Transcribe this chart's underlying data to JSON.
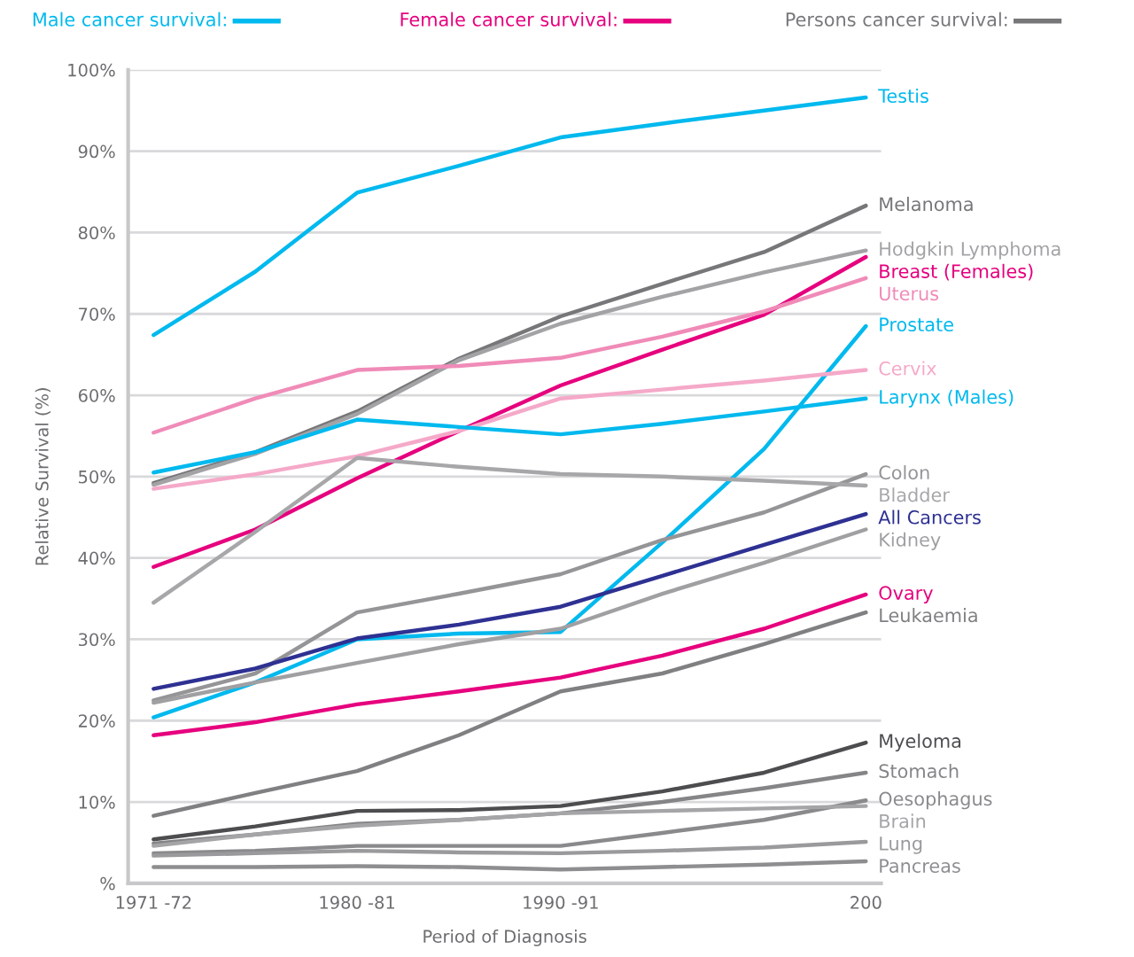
{
  "chart_data": {
    "type": "line",
    "xlabel": "Period of Diagnosis",
    "ylabel": "Relative Survival (%)",
    "categories": [
      "1971 -72",
      null,
      "1980 -81",
      null,
      "1990 -91",
      null,
      null,
      "200"
    ],
    "ylim": [
      0,
      100
    ],
    "yticks": [
      {
        "value": 0,
        "label": "%"
      },
      {
        "value": 10,
        "label": "10%"
      },
      {
        "value": 20,
        "label": "20%"
      },
      {
        "value": 30,
        "label": "30%"
      },
      {
        "value": 40,
        "label": "40%"
      },
      {
        "value": 50,
        "label": "50%"
      },
      {
        "value": 60,
        "label": "60%"
      },
      {
        "value": 70,
        "label": "70%"
      },
      {
        "value": 80,
        "label": "80%"
      },
      {
        "value": 90,
        "label": "90%"
      },
      {
        "value": 100,
        "label": "100%"
      }
    ],
    "grid": "y",
    "marker": "none",
    "line_style": "solid",
    "annotations": [
      "Male cancer survival:",
      "Female cancer survival:",
      "Persons cancer survival:"
    ],
    "series": [
      {
        "name": "Testis",
        "color": "#00b9ee",
        "values": [
          67.4,
          75.2,
          84.9,
          88.2,
          91.7,
          93.4,
          95.0,
          96.6
        ]
      },
      {
        "name": "Melanoma",
        "color": "#77777a",
        "values": [
          49.2,
          53.0,
          58.0,
          64.5,
          69.7,
          73.7,
          77.6,
          83.3
        ]
      },
      {
        "name": "Hodgkin Lymphoma",
        "color": "#a3a3a6",
        "values": [
          49.0,
          52.8,
          57.7,
          64.3,
          68.8,
          72.1,
          75.1,
          77.8
        ]
      },
      {
        "name": "Breast (Females)",
        "color": "#e6007e",
        "values": [
          38.9,
          43.5,
          49.8,
          55.6,
          61.2,
          65.6,
          69.9,
          77.0
        ]
      },
      {
        "name": "Uterus",
        "color": "#f08bb8",
        "values": [
          55.4,
          59.6,
          63.1,
          63.6,
          64.6,
          67.2,
          70.3,
          74.4
        ]
      },
      {
        "name": "Prostate",
        "color": "#00b9ee",
        "values": [
          20.4,
          24.7,
          30.0,
          30.7,
          30.9,
          41.9,
          53.4,
          68.5
        ]
      },
      {
        "name": "Cervix",
        "color": "#f5a9c9",
        "values": [
          48.5,
          50.3,
          52.5,
          55.6,
          59.6,
          60.7,
          61.8,
          63.1
        ]
      },
      {
        "name": "Larynx (Males)",
        "color": "#00b9ee",
        "values": [
          50.5,
          53.0,
          57.0,
          56.1,
          55.2,
          56.5,
          58.0,
          59.6
        ]
      },
      {
        "name": "Colon",
        "color": "#959598",
        "values": [
          22.5,
          25.8,
          33.3,
          35.6,
          38.0,
          42.2,
          45.6,
          50.3
        ]
      },
      {
        "name": "Bladder",
        "color": "#a7a7aa",
        "values": [
          34.5,
          43.2,
          52.3,
          51.2,
          50.3,
          50.0,
          49.5,
          48.9
        ]
      },
      {
        "name": "All Cancers",
        "color": "#2e3192",
        "values": [
          23.9,
          26.4,
          30.1,
          31.8,
          34.0,
          37.8,
          41.6,
          45.4
        ]
      },
      {
        "name": "Kidney",
        "color": "#a0a0a3",
        "values": [
          22.2,
          24.7,
          27.1,
          29.4,
          31.3,
          35.6,
          39.4,
          43.5
        ]
      },
      {
        "name": "Ovary",
        "color": "#e6007e",
        "values": [
          18.2,
          19.8,
          22.0,
          23.6,
          25.3,
          28.0,
          31.3,
          35.5
        ]
      },
      {
        "name": "Leukaemia",
        "color": "#808083",
        "values": [
          8.3,
          11.1,
          13.8,
          18.2,
          23.6,
          25.8,
          29.4,
          33.3
        ]
      },
      {
        "name": "Myeloma",
        "color": "#4d4d50",
        "values": [
          5.4,
          7.0,
          8.9,
          9.0,
          9.5,
          11.3,
          13.6,
          17.3
        ]
      },
      {
        "name": "Stomach",
        "color": "#858588",
        "values": [
          4.9,
          6.0,
          7.3,
          7.8,
          8.6,
          10.0,
          11.7,
          13.6
        ]
      },
      {
        "name": "Oesophagus",
        "color": "#8a8a8d",
        "values": [
          3.7,
          4.0,
          4.6,
          4.6,
          4.6,
          6.2,
          7.8,
          10.2
        ]
      },
      {
        "name": "Brain",
        "color": "#a5a5a8",
        "values": [
          4.6,
          6.0,
          7.1,
          7.8,
          8.6,
          8.9,
          9.2,
          9.5
        ]
      },
      {
        "name": "Lung",
        "color": "#9a9a9d",
        "values": [
          3.4,
          3.7,
          4.0,
          3.8,
          3.7,
          4.0,
          4.4,
          5.1
        ]
      },
      {
        "name": "Pancreas",
        "color": "#8e8e91",
        "values": [
          2.0,
          2.0,
          2.1,
          2.0,
          1.7,
          2.0,
          2.3,
          2.7
        ]
      }
    ]
  }
}
